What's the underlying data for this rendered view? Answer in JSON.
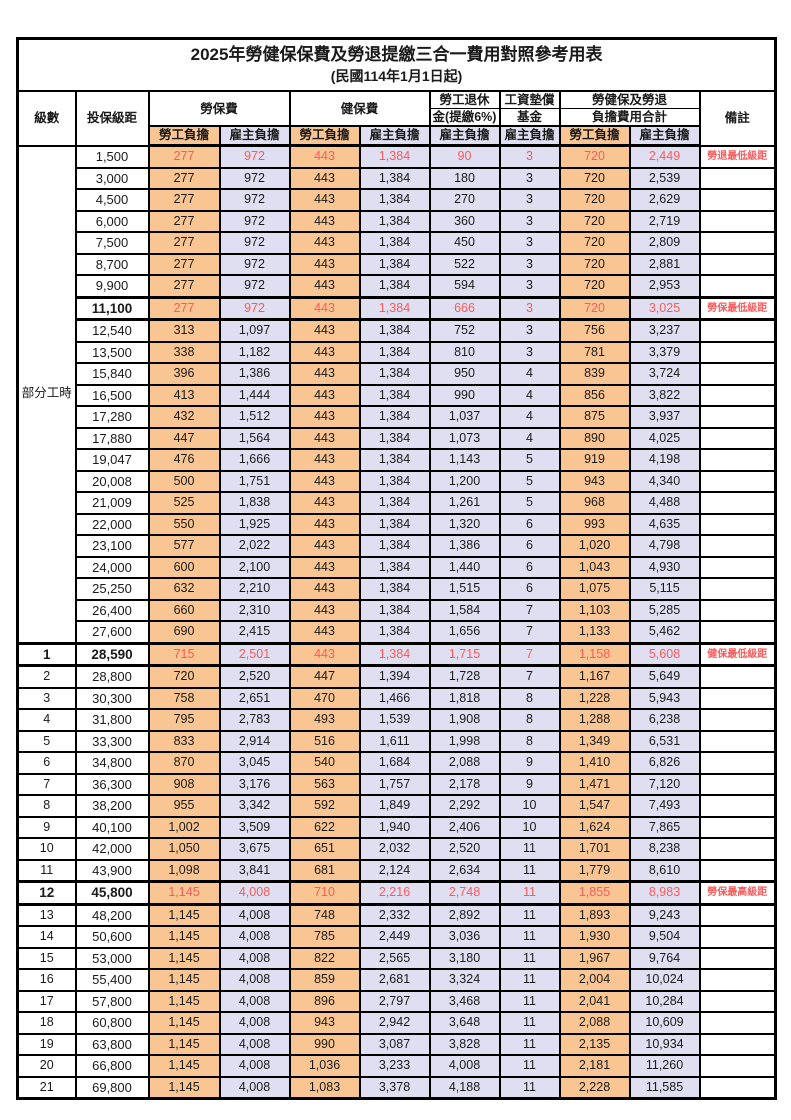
{
  "title": "2025年勞健保保費及勞退提繳三合一費用對照參考用表",
  "subtitle": "(民國114年1月1日起)",
  "columns": {
    "level": "級數",
    "salary": "投保級距",
    "labor": "勞保費",
    "health": "健保費",
    "pension_line1": "勞工退休",
    "pension_line2": "金(提繳6%)",
    "fund_line1": "工資墊償",
    "fund_line2": "基金",
    "total_line1": "勞健保及勞退",
    "total_line2": "負擔費用合計",
    "note": "備註",
    "employee": "勞工負擔",
    "employer": "雇主負擔"
  },
  "part_time_label": "部分工時",
  "colors": {
    "employee_fill": "#F9C693",
    "employer_fill": "#E0DFF1",
    "highlight_red": "#F75B5B",
    "grid": "#000000"
  },
  "rows": [
    {
      "level": "",
      "salary": "1,500",
      "values": [
        "277",
        "972",
        "443",
        "1,384",
        "90",
        "3",
        "720",
        "2,449"
      ],
      "note": "勞退最低級距",
      "red": true
    },
    {
      "level": "",
      "salary": "3,000",
      "values": [
        "277",
        "972",
        "443",
        "1,384",
        "180",
        "3",
        "720",
        "2,539"
      ],
      "note": ""
    },
    {
      "level": "",
      "salary": "4,500",
      "values": [
        "277",
        "972",
        "443",
        "1,384",
        "270",
        "3",
        "720",
        "2,629"
      ],
      "note": ""
    },
    {
      "level": "",
      "salary": "6,000",
      "values": [
        "277",
        "972",
        "443",
        "1,384",
        "360",
        "3",
        "720",
        "2,719"
      ],
      "note": ""
    },
    {
      "level": "",
      "salary": "7,500",
      "values": [
        "277",
        "972",
        "443",
        "1,384",
        "450",
        "3",
        "720",
        "2,809"
      ],
      "note": ""
    },
    {
      "level": "",
      "salary": "8,700",
      "values": [
        "277",
        "972",
        "443",
        "1,384",
        "522",
        "3",
        "720",
        "2,881"
      ],
      "note": ""
    },
    {
      "level": "",
      "salary": "9,900",
      "values": [
        "277",
        "972",
        "443",
        "1,384",
        "594",
        "3",
        "720",
        "2,953"
      ],
      "note": ""
    },
    {
      "level": "",
      "salary": "11,100",
      "values": [
        "277",
        "972",
        "443",
        "1,384",
        "666",
        "3",
        "720",
        "3,025"
      ],
      "note": "勞保最低級距",
      "red": true,
      "thick": true
    },
    {
      "level": "",
      "salary": "12,540",
      "values": [
        "313",
        "1,097",
        "443",
        "1,384",
        "752",
        "3",
        "756",
        "3,237"
      ],
      "note": ""
    },
    {
      "level": "",
      "salary": "13,500",
      "values": [
        "338",
        "1,182",
        "443",
        "1,384",
        "810",
        "3",
        "781",
        "3,379"
      ],
      "note": ""
    },
    {
      "level": "",
      "salary": "15,840",
      "values": [
        "396",
        "1,386",
        "443",
        "1,384",
        "950",
        "4",
        "839",
        "3,724"
      ],
      "note": ""
    },
    {
      "level": "",
      "salary": "16,500",
      "values": [
        "413",
        "1,444",
        "443",
        "1,384",
        "990",
        "4",
        "856",
        "3,822"
      ],
      "note": ""
    },
    {
      "level": "",
      "salary": "17,280",
      "values": [
        "432",
        "1,512",
        "443",
        "1,384",
        "1,037",
        "4",
        "875",
        "3,937"
      ],
      "note": ""
    },
    {
      "level": "",
      "salary": "17,880",
      "values": [
        "447",
        "1,564",
        "443",
        "1,384",
        "1,073",
        "4",
        "890",
        "4,025"
      ],
      "note": ""
    },
    {
      "level": "",
      "salary": "19,047",
      "values": [
        "476",
        "1,666",
        "443",
        "1,384",
        "1,143",
        "5",
        "919",
        "4,198"
      ],
      "note": ""
    },
    {
      "level": "",
      "salary": "20,008",
      "values": [
        "500",
        "1,751",
        "443",
        "1,384",
        "1,200",
        "5",
        "943",
        "4,340"
      ],
      "note": ""
    },
    {
      "level": "",
      "salary": "21,009",
      "values": [
        "525",
        "1,838",
        "443",
        "1,384",
        "1,261",
        "5",
        "968",
        "4,488"
      ],
      "note": ""
    },
    {
      "level": "",
      "salary": "22,000",
      "values": [
        "550",
        "1,925",
        "443",
        "1,384",
        "1,320",
        "6",
        "993",
        "4,635"
      ],
      "note": ""
    },
    {
      "level": "",
      "salary": "23,100",
      "values": [
        "577",
        "2,022",
        "443",
        "1,384",
        "1,386",
        "6",
        "1,020",
        "4,798"
      ],
      "note": ""
    },
    {
      "level": "",
      "salary": "24,000",
      "values": [
        "600",
        "2,100",
        "443",
        "1,384",
        "1,440",
        "6",
        "1,043",
        "4,930"
      ],
      "note": ""
    },
    {
      "level": "",
      "salary": "25,250",
      "values": [
        "632",
        "2,210",
        "443",
        "1,384",
        "1,515",
        "6",
        "1,075",
        "5,115"
      ],
      "note": ""
    },
    {
      "level": "",
      "salary": "26,400",
      "values": [
        "660",
        "2,310",
        "443",
        "1,384",
        "1,584",
        "7",
        "1,103",
        "5,285"
      ],
      "note": ""
    },
    {
      "level": "",
      "salary": "27,600",
      "values": [
        "690",
        "2,415",
        "443",
        "1,384",
        "1,656",
        "7",
        "1,133",
        "5,462"
      ],
      "note": ""
    },
    {
      "level": "1",
      "salary": "28,590",
      "values": [
        "715",
        "2,501",
        "443",
        "1,384",
        "1,715",
        "7",
        "1,158",
        "5,608"
      ],
      "note": "健保最低級距",
      "red": true,
      "thick": true
    },
    {
      "level": "2",
      "salary": "28,800",
      "values": [
        "720",
        "2,520",
        "447",
        "1,394",
        "1,728",
        "7",
        "1,167",
        "5,649"
      ],
      "note": ""
    },
    {
      "level": "3",
      "salary": "30,300",
      "values": [
        "758",
        "2,651",
        "470",
        "1,466",
        "1,818",
        "8",
        "1,228",
        "5,943"
      ],
      "note": ""
    },
    {
      "level": "4",
      "salary": "31,800",
      "values": [
        "795",
        "2,783",
        "493",
        "1,539",
        "1,908",
        "8",
        "1,288",
        "6,238"
      ],
      "note": ""
    },
    {
      "level": "5",
      "salary": "33,300",
      "values": [
        "833",
        "2,914",
        "516",
        "1,611",
        "1,998",
        "8",
        "1,349",
        "6,531"
      ],
      "note": ""
    },
    {
      "level": "6",
      "salary": "34,800",
      "values": [
        "870",
        "3,045",
        "540",
        "1,684",
        "2,088",
        "9",
        "1,410",
        "6,826"
      ],
      "note": ""
    },
    {
      "level": "7",
      "salary": "36,300",
      "values": [
        "908",
        "3,176",
        "563",
        "1,757",
        "2,178",
        "9",
        "1,471",
        "7,120"
      ],
      "note": ""
    },
    {
      "level": "8",
      "salary": "38,200",
      "values": [
        "955",
        "3,342",
        "592",
        "1,849",
        "2,292",
        "10",
        "1,547",
        "7,493"
      ],
      "note": ""
    },
    {
      "level": "9",
      "salary": "40,100",
      "values": [
        "1,002",
        "3,509",
        "622",
        "1,940",
        "2,406",
        "10",
        "1,624",
        "7,865"
      ],
      "note": ""
    },
    {
      "level": "10",
      "salary": "42,000",
      "values": [
        "1,050",
        "3,675",
        "651",
        "2,032",
        "2,520",
        "11",
        "1,701",
        "8,238"
      ],
      "note": ""
    },
    {
      "level": "11",
      "salary": "43,900",
      "values": [
        "1,098",
        "3,841",
        "681",
        "2,124",
        "2,634",
        "11",
        "1,779",
        "8,610"
      ],
      "note": ""
    },
    {
      "level": "12",
      "salary": "45,800",
      "values": [
        "1,145",
        "4,008",
        "710",
        "2,216",
        "2,748",
        "11",
        "1,855",
        "8,983"
      ],
      "note": "勞保最高級距",
      "red": true,
      "thick": true
    },
    {
      "level": "13",
      "salary": "48,200",
      "values": [
        "1,145",
        "4,008",
        "748",
        "2,332",
        "2,892",
        "11",
        "1,893",
        "9,243"
      ],
      "note": ""
    },
    {
      "level": "14",
      "salary": "50,600",
      "values": [
        "1,145",
        "4,008",
        "785",
        "2,449",
        "3,036",
        "11",
        "1,930",
        "9,504"
      ],
      "note": ""
    },
    {
      "level": "15",
      "salary": "53,000",
      "values": [
        "1,145",
        "4,008",
        "822",
        "2,565",
        "3,180",
        "11",
        "1,967",
        "9,764"
      ],
      "note": ""
    },
    {
      "level": "16",
      "salary": "55,400",
      "values": [
        "1,145",
        "4,008",
        "859",
        "2,681",
        "3,324",
        "11",
        "2,004",
        "10,024"
      ],
      "note": ""
    },
    {
      "level": "17",
      "salary": "57,800",
      "values": [
        "1,145",
        "4,008",
        "896",
        "2,797",
        "3,468",
        "11",
        "2,041",
        "10,284"
      ],
      "note": ""
    },
    {
      "level": "18",
      "salary": "60,800",
      "values": [
        "1,145",
        "4,008",
        "943",
        "2,942",
        "3,648",
        "11",
        "2,088",
        "10,609"
      ],
      "note": ""
    },
    {
      "level": "19",
      "salary": "63,800",
      "values": [
        "1,145",
        "4,008",
        "990",
        "3,087",
        "3,828",
        "11",
        "2,135",
        "10,934"
      ],
      "note": ""
    },
    {
      "level": "20",
      "salary": "66,800",
      "values": [
        "1,145",
        "4,008",
        "1,036",
        "3,233",
        "4,008",
        "11",
        "2,181",
        "11,260"
      ],
      "note": ""
    },
    {
      "level": "21",
      "salary": "69,800",
      "values": [
        "1,145",
        "4,008",
        "1,083",
        "3,378",
        "4,188",
        "11",
        "2,228",
        "11,585"
      ],
      "note": ""
    }
  ]
}
